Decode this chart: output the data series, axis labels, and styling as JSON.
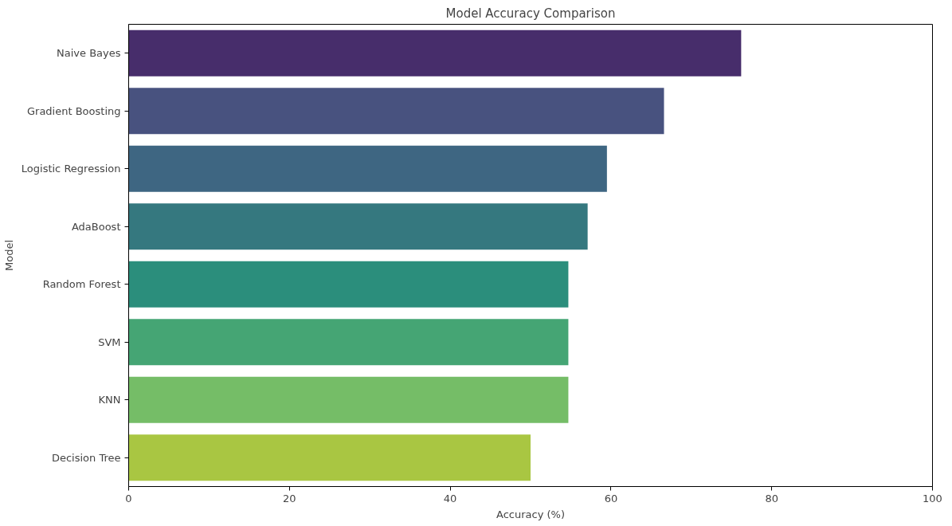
{
  "chart_data": {
    "type": "bar",
    "orientation": "horizontal",
    "title": "Model Accuracy Comparison",
    "xlabel": "Accuracy (%)",
    "ylabel": "Model",
    "categories": [
      "Naive Bayes",
      "Gradient Boosting",
      "Logistic Regression",
      "AdaBoost",
      "Random Forest",
      "SVM",
      "KNN",
      "Decision Tree"
    ],
    "values": [
      76.2,
      66.6,
      59.5,
      57.1,
      54.7,
      54.7,
      54.7,
      50.0
    ],
    "colors": [
      "#472d6b",
      "#48527f",
      "#3e6682",
      "#35787f",
      "#2b8e7c",
      "#45a574",
      "#75bd67",
      "#a9c642"
    ],
    "xlim": [
      0,
      100
    ],
    "xticks": [
      0,
      20,
      40,
      60,
      80,
      100
    ],
    "grid": false
  }
}
